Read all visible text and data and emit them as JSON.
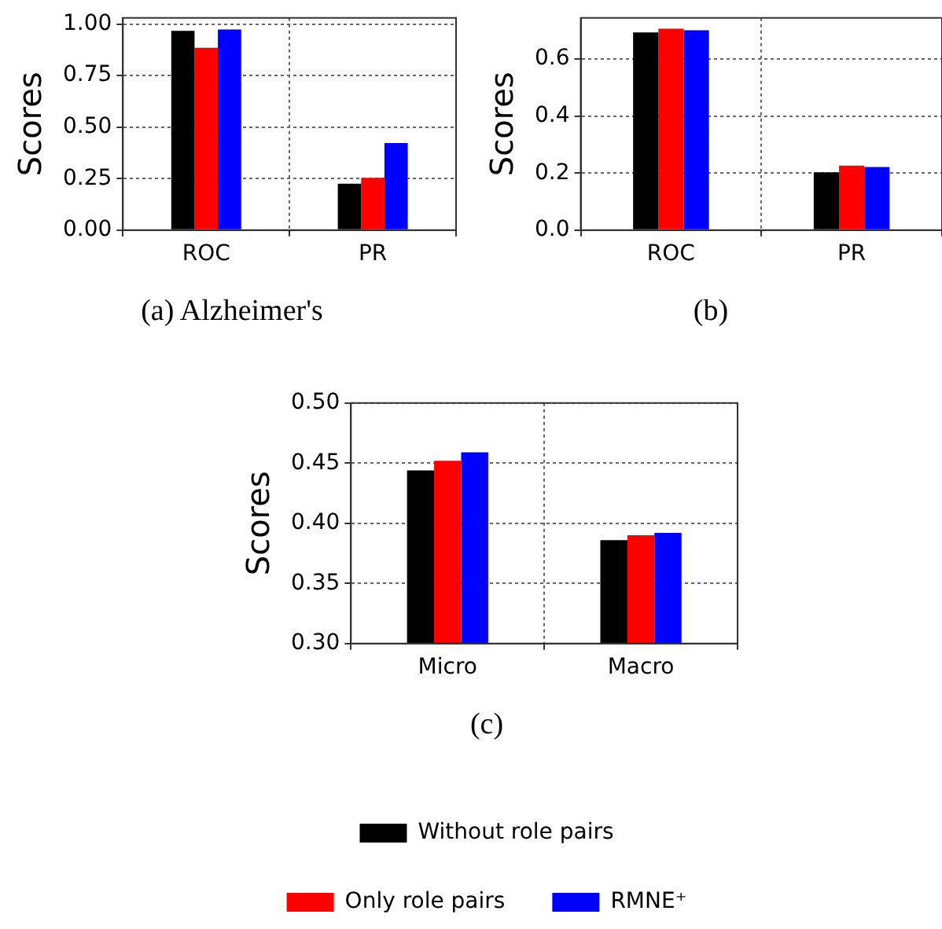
{
  "chart_data": [
    {
      "type": "bar",
      "title": "(a) Alzheimer's",
      "ylabel": "Scores",
      "categories": [
        "ROC",
        "PR"
      ],
      "series": [
        {
          "color": "#000000",
          "values": [
            0.967,
            0.225
          ]
        },
        {
          "color": "#ff0000",
          "values": [
            0.885,
            0.254
          ]
        },
        {
          "color": "#0000ff",
          "values": [
            0.974,
            0.423
          ]
        }
      ],
      "ylim": [
        0,
        1.03
      ],
      "yticks": [
        {
          "value": 0,
          "label": "0.00"
        },
        {
          "value": 0.25,
          "label": "0.25"
        },
        {
          "value": 0.5,
          "label": "0.50"
        },
        {
          "value": 0.75,
          "label": "0.75"
        },
        {
          "value": 1,
          "label": "1.00"
        }
      ],
      "grid": true,
      "legend": false
    },
    {
      "type": "bar",
      "title": "(b)",
      "ylabel": "Scores",
      "categories": [
        "ROC",
        "PR"
      ],
      "series": [
        {
          "color": "#000000",
          "values": [
            0.693,
            0.203
          ]
        },
        {
          "color": "#ff0000",
          "values": [
            0.706,
            0.226
          ]
        },
        {
          "color": "#0000ff",
          "values": [
            0.701,
            0.221
          ]
        }
      ],
      "ylim": [
        0,
        0.744
      ],
      "yticks": [
        {
          "value": 0,
          "label": "0.0"
        },
        {
          "value": 0.2,
          "label": "0.2"
        },
        {
          "value": 0.4,
          "label": "0.4"
        },
        {
          "value": 0.6,
          "label": "0.6"
        }
      ],
      "grid": true,
      "legend": false
    },
    {
      "type": "bar",
      "title": "(c)",
      "ylabel": "Scores",
      "categories": [
        "Micro",
        "Macro"
      ],
      "series": [
        {
          "name": "Without role pairs",
          "color": "#000000",
          "values": [
            0.444,
            0.386
          ]
        },
        {
          "name": "Only role pairs",
          "color": "#ff0000",
          "values": [
            0.452,
            0.39
          ]
        },
        {
          "name": "RMNE⁺",
          "color": "#0000ff",
          "values": [
            0.459,
            0.392
          ]
        }
      ],
      "ylim": [
        0.3,
        0.5
      ],
      "yticks": [
        {
          "value": 0.3,
          "label": "0.30"
        },
        {
          "value": 0.35,
          "label": "0.35"
        },
        {
          "value": 0.4,
          "label": "0.40"
        },
        {
          "value": 0.45,
          "label": "0.45"
        },
        {
          "value": 0.5,
          "label": "0.50"
        }
      ],
      "grid": true,
      "legend": "bottom"
    }
  ]
}
